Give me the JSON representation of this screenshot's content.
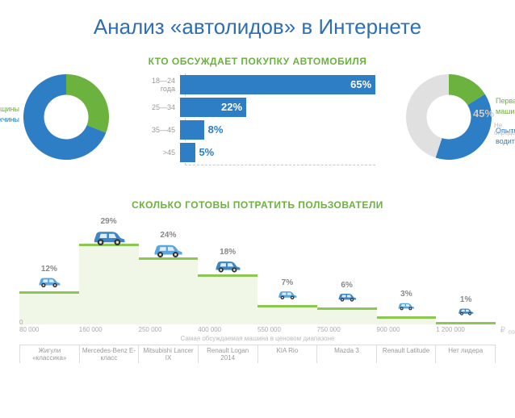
{
  "title": "Анализ «автолидов» в Интернете",
  "section1_title": "КТО ОБСУЖДАЕТ ПОКУПКУ АВТОМОБИЛЯ",
  "section2_title": "СКОЛЬКО ГОТОВЫ ПОТРАТИТЬ ПОЛЬЗОВАТЕЛИ",
  "colors": {
    "title": "#2d6fb5",
    "green": "#6bb23e",
    "blue": "#2d7ec4",
    "grey": "#cfcfcf"
  },
  "gender_donut": {
    "slices": [
      {
        "label": "Женщины",
        "pct": 31,
        "color": "#6bb23e",
        "label_color": "#6bb23e",
        "pct_text": "31%"
      },
      {
        "label": "Мужчины",
        "pct": 69,
        "color": "#2d7ec4",
        "label_color": "#2d7ec4",
        "pct_text": "69%"
      }
    ],
    "inner_radius": 28,
    "outer_radius": 54
  },
  "experience_donut": {
    "slices": [
      {
        "label": "Первая машина",
        "pct": 16,
        "color": "#6bb23e",
        "label_color": "#6bb23e",
        "pct_text": "16%"
      },
      {
        "label": "Опытный водитель",
        "pct": 39,
        "color": "#2d7ec4",
        "label_color": "#2d7ec4",
        "pct_text": "39%"
      },
      {
        "label": "Не определено",
        "pct": 45,
        "color": "#e0e0e0",
        "label_color": "#bbbbbb",
        "pct_text": "45%"
      }
    ],
    "inner_radius": 28,
    "outer_radius": 54
  },
  "age_bars": {
    "max": 65,
    "rows": [
      {
        "label": "18—24 года",
        "pct": 65,
        "text": "65%"
      },
      {
        "label": "25—34",
        "pct": 22,
        "text": "22%"
      },
      {
        "label": "35—45",
        "pct": 8,
        "text": "8%"
      },
      {
        "label": ">45",
        "pct": 5,
        "text": "5%"
      }
    ],
    "bar_color": "#2d7ec4"
  },
  "spending": {
    "max_pct": 29,
    "bar_fill": "#f0f7e7",
    "bar_top": "#8cc751",
    "cols": [
      {
        "pct": 12,
        "pct_text": "12%",
        "tick": "80 000",
        "brand": "Жигули «классика»",
        "car_color": "#5aa6de"
      },
      {
        "pct": 29,
        "pct_text": "29%",
        "tick": "160 000",
        "brand": "Mercedes-Benz E-класс",
        "car_color": "#3d86c6"
      },
      {
        "pct": 24,
        "pct_text": "24%",
        "tick": "250 000",
        "brand": "Mitsubishi Lancer IX",
        "car_color": "#5aa6de"
      },
      {
        "pct": 18,
        "pct_text": "18%",
        "tick": "400 000",
        "brand": "Renault Logan 2014",
        "car_color": "#3d86c6"
      },
      {
        "pct": 7,
        "pct_text": "7%",
        "tick": "550 000",
        "brand": "KIA Rio",
        "car_color": "#5aa6de"
      },
      {
        "pct": 6,
        "pct_text": "6%",
        "tick": "750 000",
        "brand": "Mazda 3",
        "car_color": "#3d86c6"
      },
      {
        "pct": 3,
        "pct_text": "3%",
        "tick": "900 000",
        "brand": "Renault Latitude",
        "car_color": "#5aa6de"
      },
      {
        "pct": 1,
        "pct_text": "1%",
        "tick": "1 200 000",
        "brand": "Нет лидера",
        "car_color": "#3d86c6"
      }
    ],
    "zero_label": "0",
    "currency": "₽",
    "caption": "Самая обсуждаемая машина в ценовом диапазоне"
  }
}
